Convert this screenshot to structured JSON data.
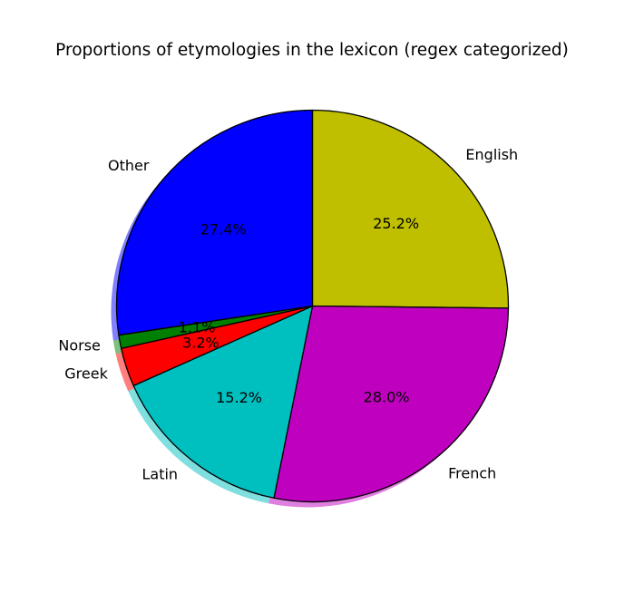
{
  "chart_data": {
    "type": "pie",
    "title": "Proportions of etymologies in the lexicon (regex categorized)",
    "start_angle_deg": 90,
    "direction": "clockwise",
    "shadow": true,
    "slices": [
      {
        "label": "English",
        "value": 25.2,
        "pct_label": "25.2%",
        "color": "#bfbf00"
      },
      {
        "label": "French",
        "value": 28.0,
        "pct_label": "28.0%",
        "color": "#bf00bf"
      },
      {
        "label": "Latin",
        "value": 15.2,
        "pct_label": "15.2%",
        "color": "#00bfbf"
      },
      {
        "label": "Greek",
        "value": 3.2,
        "pct_label": "3.2%",
        "color": "#ff0000"
      },
      {
        "label": "Norse",
        "value": 1.1,
        "pct_label": "1.1%",
        "color": "#008000"
      },
      {
        "label": "Other",
        "value": 27.4,
        "pct_label": "27.4%",
        "color": "#0000ff"
      }
    ]
  }
}
